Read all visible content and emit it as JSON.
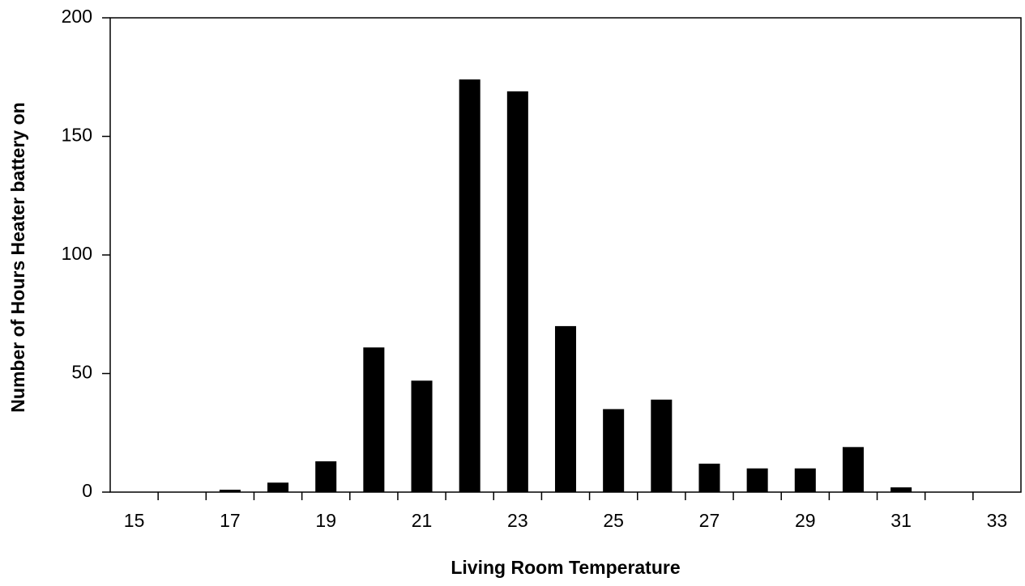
{
  "chart_data": {
    "type": "bar",
    "x_label": "Living Room Temperature",
    "y_label": "Number of Hours Heater battery on",
    "categories": [
      "15",
      null,
      "17",
      null,
      "19",
      null,
      "21",
      null,
      "23",
      null,
      "25",
      null,
      "27",
      null,
      "29",
      null,
      "31",
      null,
      "33"
    ],
    "values": [
      0,
      0,
      1,
      4,
      13,
      61,
      47,
      174,
      169,
      70,
      35,
      39,
      12,
      10,
      10,
      19,
      2,
      0,
      0
    ],
    "color": "#000000",
    "ylim": [
      0,
      200
    ],
    "yticks": [
      0,
      50,
      100,
      150,
      200
    ],
    "grid": false
  }
}
